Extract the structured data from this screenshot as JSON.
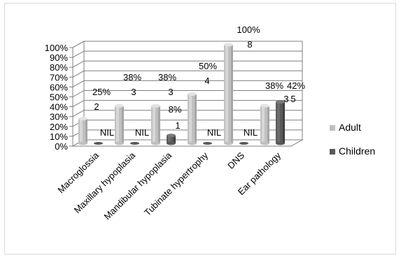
{
  "chart_data": {
    "type": "bar",
    "categories": [
      "Macroglossia",
      "Maxillary hypoplasia",
      "Mandibular hypoplasia",
      "Tubinate hypertrophy",
      "DNS",
      "Ear pathology"
    ],
    "series": [
      {
        "name": "Adult",
        "color": "#bfbfbf",
        "values": [
          25,
          38,
          38,
          50,
          100,
          38
        ],
        "percent_labels": [
          "25%",
          "38%",
          "38%",
          "50%",
          "100%",
          "38%"
        ],
        "count_labels": [
          "2",
          "3",
          "3",
          "4",
          "8",
          "3"
        ]
      },
      {
        "name": "Children",
        "color": "#595959",
        "values": [
          0,
          0,
          8,
          0,
          0,
          42
        ],
        "percent_labels": [
          "",
          "",
          "8%",
          "",
          "",
          "42%"
        ],
        "count_labels": [
          "NIL",
          "NIL",
          "1",
          "NIL",
          "NIL",
          "5"
        ]
      }
    ],
    "y_ticks": [
      "0%",
      "10%",
      "20%",
      "30%",
      "40%",
      "50%",
      "60%",
      "70%",
      "80%",
      "90%",
      "100%"
    ],
    "ylim": [
      0,
      100
    ],
    "title": "",
    "xlabel": "",
    "ylabel": "",
    "grid": true,
    "legend": "right"
  }
}
